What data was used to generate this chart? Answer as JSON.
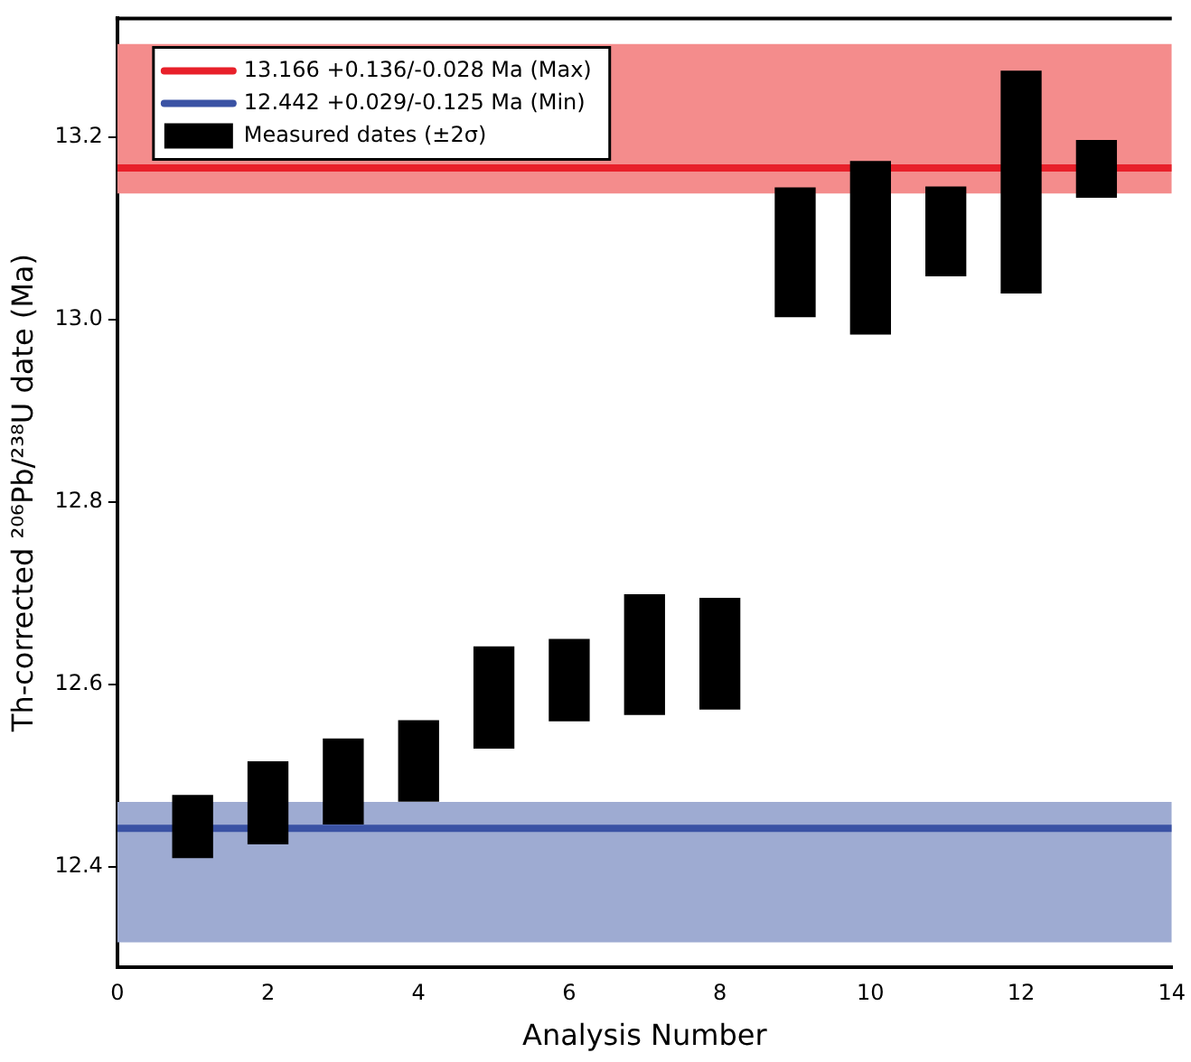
{
  "chart_data": {
    "type": "bar",
    "xlabel": "Analysis Number",
    "ylabel": "Th-corrected ²⁰⁶Pb/²³⁸U date (Ma)",
    "x": [
      1,
      2,
      3,
      4,
      5,
      6,
      7,
      8,
      9,
      10,
      11,
      12,
      13
    ],
    "series": [
      {
        "name": "Measured dates (±2σ)",
        "color": "#000000",
        "values": [
          0.068,
          0.09,
          0.093,
          0.088,
          0.111,
          0.089,
          0.131,
          0.121,
          0.141,
          0.189,
          0.097,
          0.243,
          0.062
        ],
        "base": [
          12.41,
          12.425,
          12.447,
          12.472,
          12.53,
          12.56,
          12.567,
          12.573,
          13.003,
          12.984,
          13.048,
          13.029,
          13.134
        ]
      }
    ],
    "xlim": [
      0,
      14
    ],
    "xticks": [
      0,
      2,
      4,
      6,
      8,
      10,
      12,
      14
    ],
    "ylim": [
      12.29,
      13.33
    ],
    "yticks": [
      {
        "value": 12.4,
        "label": "12.4"
      },
      {
        "value": 12.6,
        "label": "12.6"
      },
      {
        "value": 12.8,
        "label": "12.8"
      },
      {
        "value": 13,
        "label": "13.0"
      },
      {
        "value": 13.2,
        "label": "13.2"
      }
    ],
    "ref_lines": [
      {
        "axis": "y",
        "value": 13.166,
        "label": "13.166 +0.136/-0.028 Ma (Max)",
        "color": "#e8202a"
      },
      {
        "axis": "y",
        "value": 12.442,
        "label": "12.442 +0.029/-0.125 Ma (Min)",
        "color": "#3a52a4"
      }
    ],
    "bands": [
      {
        "axis": "y",
        "from": 13.138,
        "to": 13.302,
        "color": "#f48c8c"
      },
      {
        "axis": "y",
        "from": 12.317,
        "to": 12.471,
        "color": "#9eabd2"
      }
    ],
    "legend": "top left",
    "grid": false
  }
}
